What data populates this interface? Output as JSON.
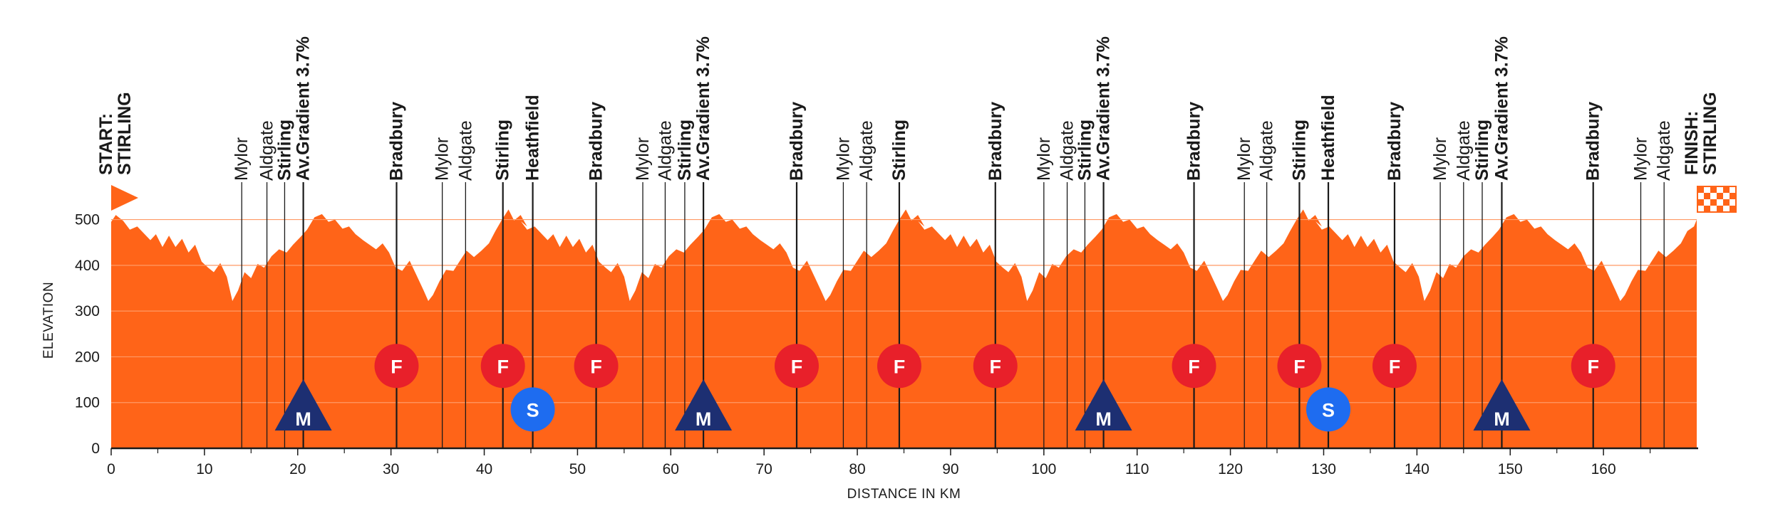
{
  "chart_data": {
    "type": "area",
    "xlabel": "DISTANCE IN KM",
    "ylabel": "ELEVATION",
    "xlim": [
      0,
      170
    ],
    "ylim": [
      0,
      560
    ],
    "x_ticks": [
      0,
      10,
      20,
      30,
      40,
      50,
      60,
      70,
      80,
      90,
      100,
      110,
      120,
      130,
      140,
      150,
      160
    ],
    "y_ticks": [
      0,
      100,
      200,
      300,
      400,
      500
    ],
    "grid_y": true,
    "colors": {
      "fill": "#ff6418",
      "grid": "#ff9a66",
      "badge_f": "#e8202a",
      "badge_s": "#1e6cf0",
      "badge_m": "#1d2f72",
      "marker": "#1a1a1a"
    },
    "lap_profile": [
      [
        0,
        495
      ],
      [
        0.5,
        510
      ],
      [
        1.3,
        497
      ],
      [
        2.0,
        478
      ],
      [
        2.8,
        485
      ],
      [
        3.5,
        470
      ],
      [
        4.2,
        455
      ],
      [
        4.8,
        468
      ],
      [
        5.5,
        440
      ],
      [
        6.2,
        465
      ],
      [
        6.9,
        440
      ],
      [
        7.6,
        458
      ],
      [
        8.3,
        428
      ],
      [
        9.0,
        445
      ],
      [
        9.7,
        408
      ],
      [
        10.4,
        395
      ],
      [
        11.0,
        385
      ],
      [
        11.7,
        405
      ],
      [
        12.4,
        375
      ],
      [
        13.0,
        322
      ],
      [
        13.6,
        345
      ],
      [
        14.3,
        385
      ],
      [
        15.0,
        372
      ],
      [
        15.7,
        403
      ],
      [
        16.4,
        395
      ],
      [
        17.2,
        420
      ],
      [
        18.0,
        435
      ],
      [
        18.8,
        428
      ],
      [
        19.5,
        445
      ],
      [
        20.3,
        462
      ],
      [
        21.0,
        478
      ],
      [
        21.8,
        505
      ],
      [
        22.6,
        512
      ],
      [
        23.3,
        495
      ],
      [
        24.0,
        500
      ],
      [
        24.8,
        480
      ],
      [
        25.5,
        485
      ],
      [
        26.2,
        468
      ],
      [
        27.0,
        455
      ],
      [
        27.7,
        445
      ],
      [
        28.4,
        435
      ],
      [
        29.1,
        448
      ],
      [
        29.8,
        428
      ],
      [
        30.5,
        395
      ],
      [
        31.2,
        388
      ],
      [
        32.0,
        410
      ],
      [
        32.7,
        380
      ],
      [
        33.5,
        345
      ],
      [
        34.0,
        322
      ],
      [
        34.5,
        335
      ],
      [
        35.2,
        365
      ],
      [
        35.9,
        390
      ],
      [
        36.7,
        388
      ],
      [
        37.4,
        410
      ],
      [
        38.1,
        432
      ],
      [
        38.9,
        418
      ],
      [
        39.7,
        432
      ],
      [
        40.5,
        448
      ],
      [
        41.2,
        475
      ],
      [
        41.9,
        500
      ],
      [
        42.6,
        522
      ],
      [
        43.2,
        498
      ],
      [
        43.9,
        510
      ],
      [
        44.6,
        485
      ]
    ],
    "laps": 4,
    "lap_length": 42.6,
    "places": [
      {
        "km": 0,
        "name": "START: STIRLING",
        "type": "start"
      },
      {
        "km": 14,
        "name": "Mylor"
      },
      {
        "km": 16.7,
        "name": "Aldgate"
      },
      {
        "km": 18.6,
        "name": "Stirling",
        "bold": true
      },
      {
        "km": 20.6,
        "name": "Av.Gradient 3.7%",
        "bold": true,
        "pole": true
      },
      {
        "km": 30.6,
        "name": "Bradbury",
        "bold": true,
        "pole": true
      },
      {
        "km": 35.5,
        "name": "Mylor"
      },
      {
        "km": 38.0,
        "name": "Aldgate"
      },
      {
        "km": 42.0,
        "name": "Stirling",
        "bold": true,
        "pole": true
      },
      {
        "km": 45.2,
        "name": "Heathfield",
        "bold": true,
        "pole": true
      },
      {
        "km": 52.0,
        "name": "Bradbury",
        "bold": true,
        "pole": true
      },
      {
        "km": 57.0,
        "name": "Mylor"
      },
      {
        "km": 59.4,
        "name": "Aldgate"
      },
      {
        "km": 61.5,
        "name": "Stirling",
        "bold": true
      },
      {
        "km": 63.5,
        "name": "Av.Gradient 3.7%",
        "bold": true,
        "pole": true
      },
      {
        "km": 73.5,
        "name": "Bradbury",
        "bold": true,
        "pole": true
      },
      {
        "km": 78.5,
        "name": "Mylor"
      },
      {
        "km": 81.0,
        "name": "Aldgate"
      },
      {
        "km": 84.5,
        "name": "Stirling",
        "bold": true,
        "pole": true
      },
      {
        "km": 94.8,
        "name": "Bradbury",
        "bold": true,
        "pole": true
      },
      {
        "km": 100.0,
        "name": "Mylor"
      },
      {
        "km": 102.5,
        "name": "Aldgate"
      },
      {
        "km": 104.4,
        "name": "Stirling",
        "bold": true
      },
      {
        "km": 106.4,
        "name": "Av.Gradient 3.7%",
        "bold": true,
        "pole": true
      },
      {
        "km": 116.1,
        "name": "Bradbury",
        "bold": true,
        "pole": true
      },
      {
        "km": 121.5,
        "name": "Mylor"
      },
      {
        "km": 123.9,
        "name": "Aldgate"
      },
      {
        "km": 127.4,
        "name": "Stirling",
        "bold": true,
        "pole": true
      },
      {
        "km": 130.5,
        "name": "Heathfield",
        "bold": true,
        "pole": true
      },
      {
        "km": 137.6,
        "name": "Bradbury",
        "bold": true,
        "pole": true
      },
      {
        "km": 142.5,
        "name": "Mylor"
      },
      {
        "km": 145.0,
        "name": "Aldgate"
      },
      {
        "km": 147.0,
        "name": "Stirling",
        "bold": true
      },
      {
        "km": 149.1,
        "name": "Av.Gradient 3.7%",
        "bold": true,
        "pole": true
      },
      {
        "km": 158.9,
        "name": "Bradbury",
        "bold": true,
        "pole": true
      },
      {
        "km": 164.0,
        "name": "Mylor"
      },
      {
        "km": 166.5,
        "name": "Aldgate"
      },
      {
        "km": 170,
        "name": "FINISH: STIRLING",
        "type": "finish"
      }
    ],
    "badges": [
      {
        "km": 20.6,
        "type": "M",
        "label": "M",
        "elevation": 70
      },
      {
        "km": 30.6,
        "type": "F",
        "label": "F",
        "elevation": 180
      },
      {
        "km": 42.0,
        "type": "F",
        "label": "F",
        "elevation": 180
      },
      {
        "km": 45.2,
        "type": "S",
        "label": "S",
        "elevation": 85
      },
      {
        "km": 52.0,
        "type": "F",
        "label": "F",
        "elevation": 180
      },
      {
        "km": 63.5,
        "type": "M",
        "label": "M",
        "elevation": 70
      },
      {
        "km": 73.5,
        "type": "F",
        "label": "F",
        "elevation": 180
      },
      {
        "km": 84.5,
        "type": "F",
        "label": "F",
        "elevation": 180
      },
      {
        "km": 94.8,
        "type": "F",
        "label": "F",
        "elevation": 180
      },
      {
        "km": 106.4,
        "type": "M",
        "label": "M",
        "elevation": 70
      },
      {
        "km": 116.1,
        "type": "F",
        "label": "F",
        "elevation": 180
      },
      {
        "km": 127.4,
        "type": "F",
        "label": "F",
        "elevation": 180
      },
      {
        "km": 130.5,
        "type": "S",
        "label": "S",
        "elevation": 85
      },
      {
        "km": 137.6,
        "type": "F",
        "label": "F",
        "elevation": 180
      },
      {
        "km": 149.1,
        "type": "M",
        "label": "M",
        "elevation": 70
      },
      {
        "km": 158.9,
        "type": "F",
        "label": "F",
        "elevation": 180
      }
    ]
  }
}
